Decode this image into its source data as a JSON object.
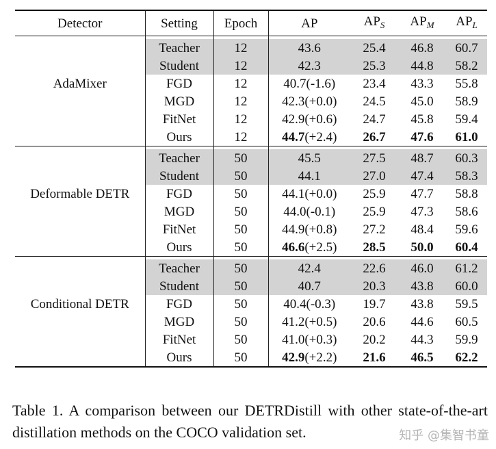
{
  "header": {
    "detector": "Detector",
    "setting": "Setting",
    "epoch": "Epoch",
    "ap": "AP",
    "ap_s_base": "AP",
    "ap_s_sub": "S",
    "ap_m_base": "AP",
    "ap_m_sub": "M",
    "ap_l_base": "AP",
    "ap_l_sub": "L"
  },
  "groups": [
    {
      "detector": "AdaMixer",
      "rows": [
        {
          "setting": "Teacher",
          "epoch": "12",
          "ap": "43.6",
          "ap_delta": "",
          "ap_s": "25.4",
          "ap_m": "46.8",
          "ap_l": "60.7",
          "shaded": true,
          "bold": false
        },
        {
          "setting": "Student",
          "epoch": "12",
          "ap": "42.3",
          "ap_delta": "",
          "ap_s": "25.3",
          "ap_m": "44.8",
          "ap_l": "58.2",
          "shaded": true,
          "bold": false
        },
        {
          "setting": "FGD",
          "epoch": "12",
          "ap": "40.7",
          "ap_delta": "(-1.6)",
          "ap_s": "23.4",
          "ap_m": "43.3",
          "ap_l": "55.8",
          "shaded": false,
          "bold": false
        },
        {
          "setting": "MGD",
          "epoch": "12",
          "ap": "42.3",
          "ap_delta": "(+0.0)",
          "ap_s": "24.5",
          "ap_m": "45.0",
          "ap_l": "58.9",
          "shaded": false,
          "bold": false
        },
        {
          "setting": "FitNet",
          "epoch": "12",
          "ap": "42.9",
          "ap_delta": "(+0.6)",
          "ap_s": "24.7",
          "ap_m": "45.8",
          "ap_l": "59.4",
          "shaded": false,
          "bold": false
        },
        {
          "setting": "Ours",
          "epoch": "12",
          "ap": "44.7",
          "ap_delta": "(+2.4)",
          "ap_s": "26.7",
          "ap_m": "47.6",
          "ap_l": "61.0",
          "shaded": false,
          "bold": true
        }
      ]
    },
    {
      "detector": "Deformable DETR",
      "rows": [
        {
          "setting": "Teacher",
          "epoch": "50",
          "ap": "45.5",
          "ap_delta": "",
          "ap_s": "27.5",
          "ap_m": "48.7",
          "ap_l": "60.3",
          "shaded": true,
          "bold": false
        },
        {
          "setting": "Student",
          "epoch": "50",
          "ap": "44.1",
          "ap_delta": "",
          "ap_s": "27.0",
          "ap_m": "47.4",
          "ap_l": "58.3",
          "shaded": true,
          "bold": false
        },
        {
          "setting": "FGD",
          "epoch": "50",
          "ap": "44.1",
          "ap_delta": "(+0.0)",
          "ap_s": "25.9",
          "ap_m": "47.7",
          "ap_l": "58.8",
          "shaded": false,
          "bold": false
        },
        {
          "setting": "MGD",
          "epoch": "50",
          "ap": "44.0",
          "ap_delta": "(-0.1)",
          "ap_s": "25.9",
          "ap_m": "47.3",
          "ap_l": "58.6",
          "shaded": false,
          "bold": false
        },
        {
          "setting": "FitNet",
          "epoch": "50",
          "ap": "44.9",
          "ap_delta": "(+0.8)",
          "ap_s": "27.2",
          "ap_m": "48.4",
          "ap_l": "59.6",
          "shaded": false,
          "bold": false
        },
        {
          "setting": "Ours",
          "epoch": "50",
          "ap": "46.6",
          "ap_delta": "(+2.5)",
          "ap_s": "28.5",
          "ap_m": "50.0",
          "ap_l": "60.4",
          "shaded": false,
          "bold": true
        }
      ]
    },
    {
      "detector": "Conditional DETR",
      "rows": [
        {
          "setting": "Teacher",
          "epoch": "50",
          "ap": "42.4",
          "ap_delta": "",
          "ap_s": "22.6",
          "ap_m": "46.0",
          "ap_l": "61.2",
          "shaded": true,
          "bold": false
        },
        {
          "setting": "Student",
          "epoch": "50",
          "ap": "40.7",
          "ap_delta": "",
          "ap_s": "20.3",
          "ap_m": "43.8",
          "ap_l": "60.0",
          "shaded": true,
          "bold": false
        },
        {
          "setting": "FGD",
          "epoch": "50",
          "ap": "40.4",
          "ap_delta": "(-0.3)",
          "ap_s": "19.7",
          "ap_m": "43.8",
          "ap_l": "59.5",
          "shaded": false,
          "bold": false
        },
        {
          "setting": "MGD",
          "epoch": "50",
          "ap": "41.2",
          "ap_delta": "(+0.5)",
          "ap_s": "20.6",
          "ap_m": "44.6",
          "ap_l": "60.5",
          "shaded": false,
          "bold": false
        },
        {
          "setting": "FitNet",
          "epoch": "50",
          "ap": "41.0",
          "ap_delta": "(+0.3)",
          "ap_s": "20.2",
          "ap_m": "44.3",
          "ap_l": "59.9",
          "shaded": false,
          "bold": false
        },
        {
          "setting": "Ours",
          "epoch": "50",
          "ap": "42.9",
          "ap_delta": "(+2.2)",
          "ap_s": "21.6",
          "ap_m": "46.5",
          "ap_l": "62.2",
          "shaded": false,
          "bold": true
        }
      ]
    }
  ],
  "caption": "Table 1. A comparison between our DETRDistill with other state-of-the-art distillation methods on the COCO validation set.",
  "watermark": "知乎 @集智书童"
}
